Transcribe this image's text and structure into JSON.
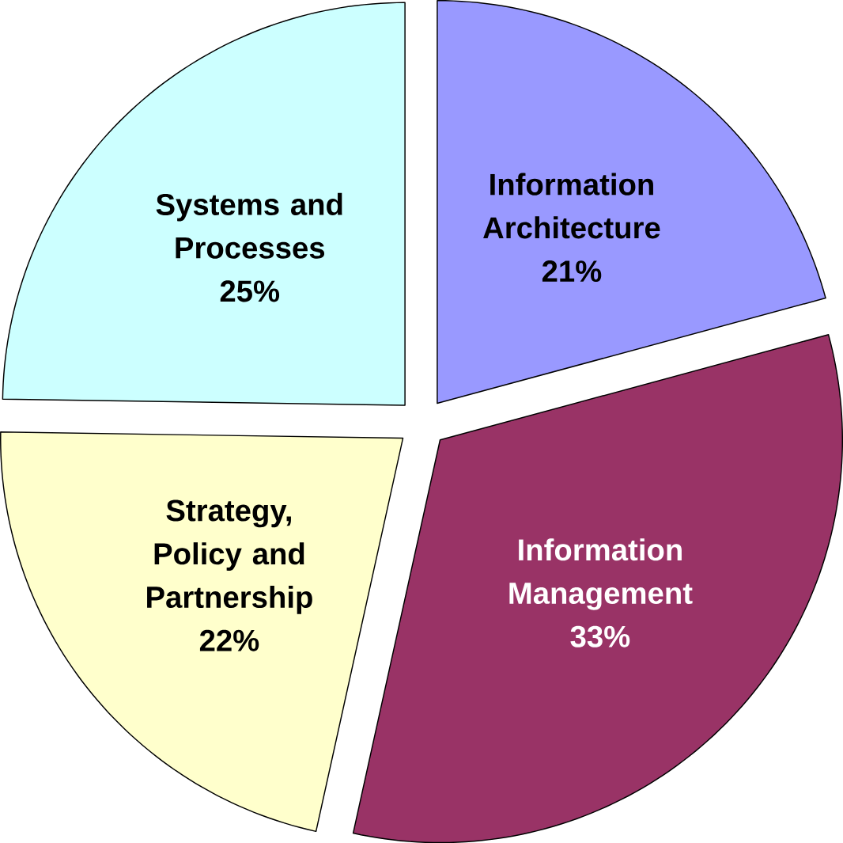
{
  "chart_data": {
    "type": "pie",
    "categories": [
      "Information Architecture",
      "Information Management",
      "Strategy, Policy and Partnership",
      "Systems and Processes"
    ],
    "values": [
      21,
      33,
      22,
      25
    ],
    "value_labels": [
      "21%",
      "33%",
      "22%",
      "25%"
    ],
    "colors": [
      "#9999ff",
      "#993366",
      "#ffffcc",
      "#ccffff"
    ]
  }
}
